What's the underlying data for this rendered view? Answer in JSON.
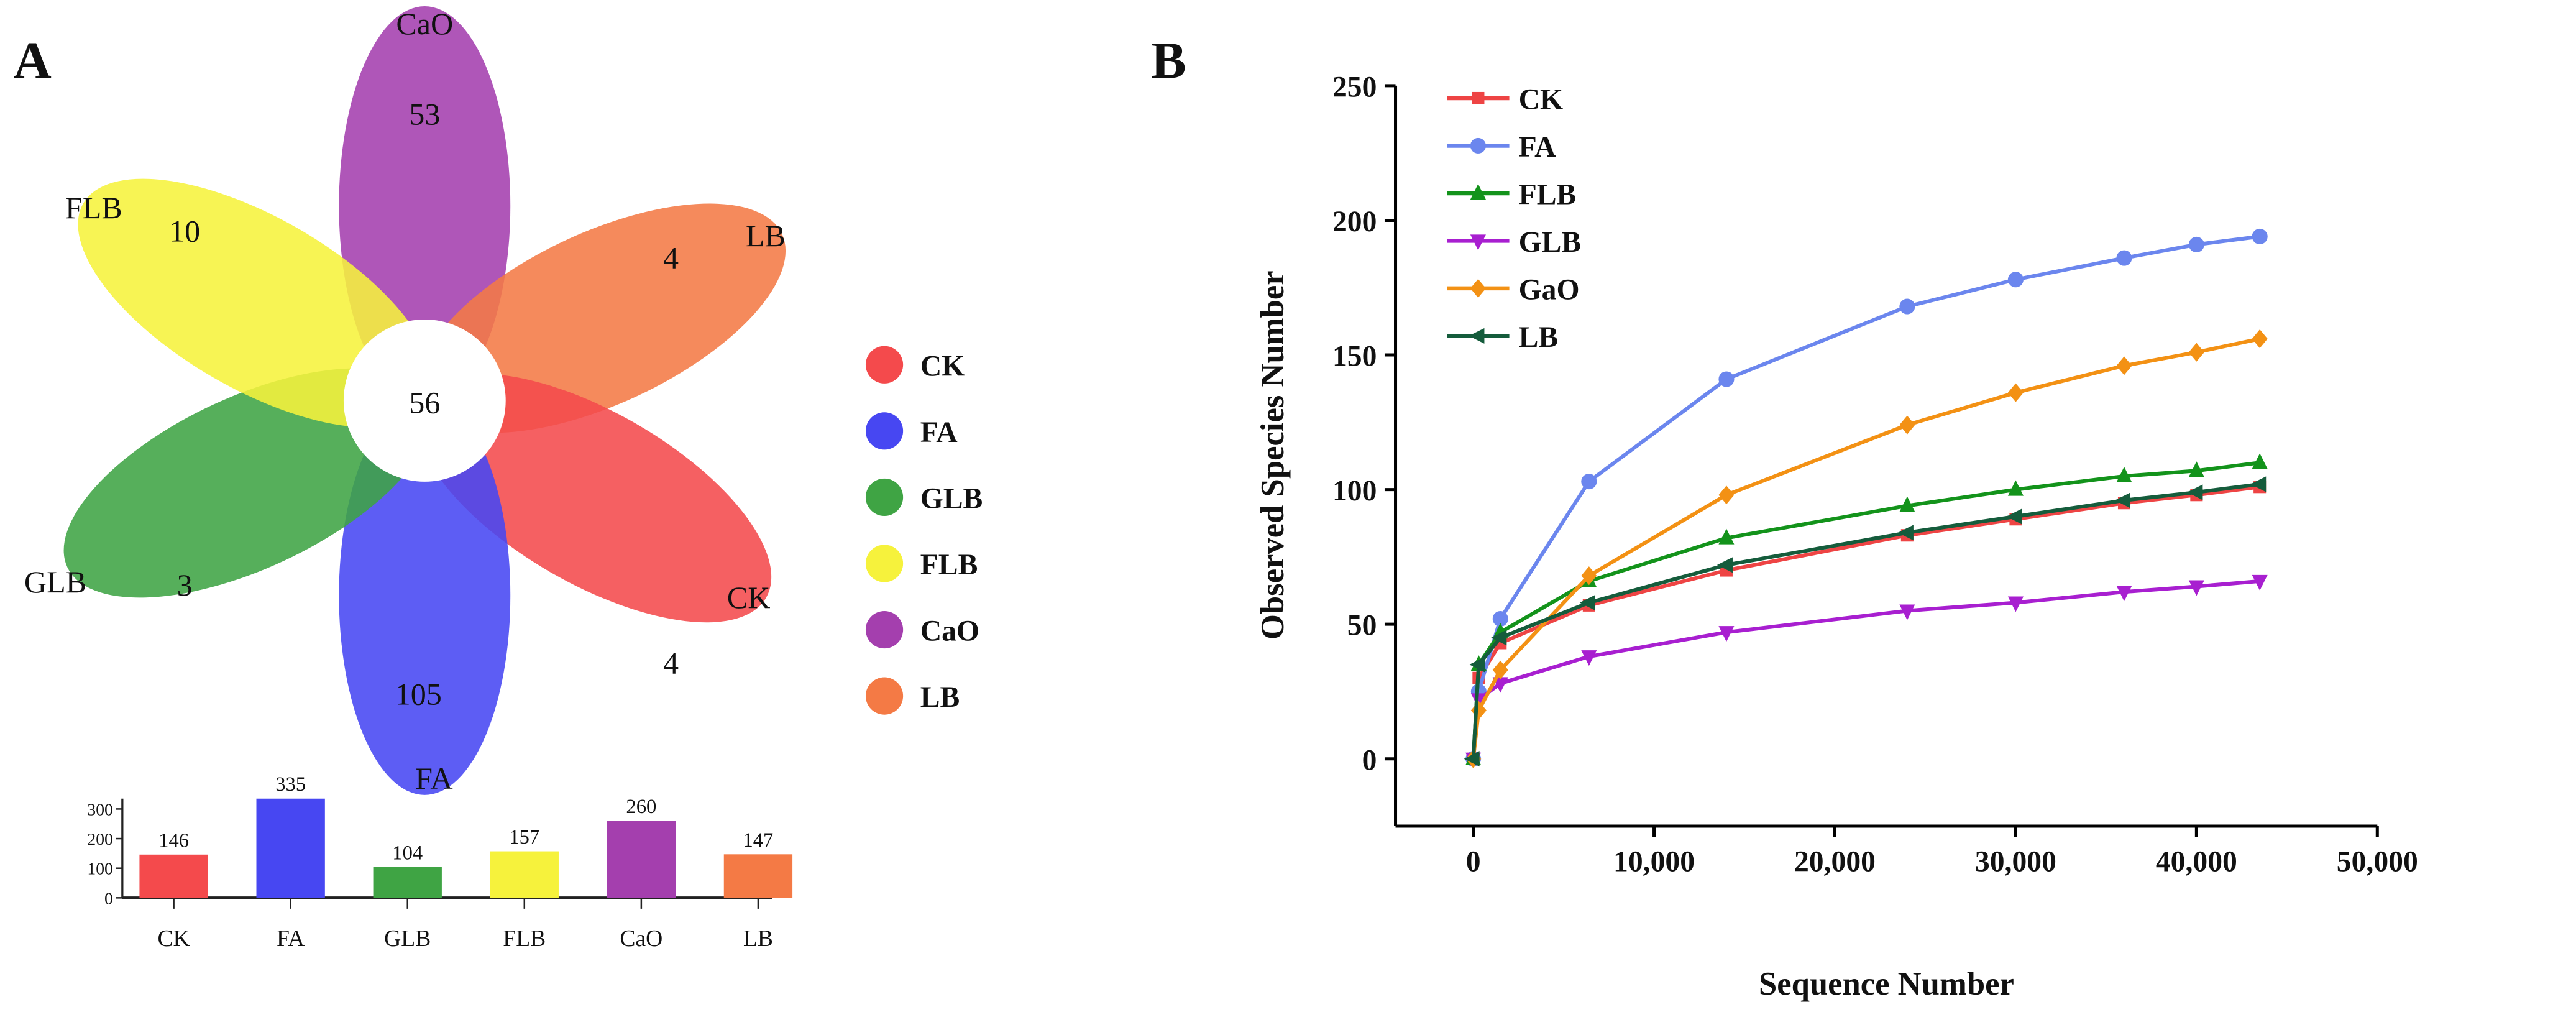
{
  "chart_data": [
    {
      "type": "venn",
      "panel_label": "A",
      "sets": [
        {
          "name": "CaO",
          "unique": 53,
          "color": "#a43fae"
        },
        {
          "name": "LB",
          "unique": 4,
          "color": "#f47a45"
        },
        {
          "name": "CK",
          "unique": 4,
          "color": "#f44a4c"
        },
        {
          "name": "FA",
          "unique": 105,
          "color": "#4747f2"
        },
        {
          "name": "GLB",
          "unique": 3,
          "color": "#3fa444"
        },
        {
          "name": "FLB",
          "unique": 10,
          "color": "#f6f23c"
        }
      ],
      "core": 56,
      "legend": [
        {
          "label": "CK",
          "color": "#f44a4c"
        },
        {
          "label": "FA",
          "color": "#4747f2"
        },
        {
          "label": "GLB",
          "color": "#3fa444"
        },
        {
          "label": "FLB",
          "color": "#f6f23c"
        },
        {
          "label": "CaO",
          "color": "#a43fae"
        },
        {
          "label": "LB",
          "color": "#f47a45"
        }
      ]
    },
    {
      "type": "bar",
      "categories": [
        "CK",
        "FA",
        "GLB",
        "FLB",
        "CaO",
        "LB"
      ],
      "values": [
        146,
        335,
        104,
        157,
        260,
        147
      ],
      "colors": [
        "#f44a4c",
        "#4747f2",
        "#3fa444",
        "#f6f23c",
        "#a43fae",
        "#f47a45"
      ],
      "yticks": [
        0,
        100,
        200,
        300
      ],
      "ylim": [
        0,
        335
      ]
    },
    {
      "type": "line",
      "panel_label": "B",
      "title": "",
      "xlabel": "Sequence Number",
      "ylabel": "Observed Species Number",
      "xlim": [
        -4300,
        50000
      ],
      "ylim": [
        -25,
        250
      ],
      "xticks": [
        0,
        10000,
        20000,
        30000,
        40000,
        50000
      ],
      "xtick_labels": [
        "0",
        "10,000",
        "20,000",
        "30,000",
        "40,000",
        "50,000"
      ],
      "yticks": [
        0,
        50,
        100,
        150,
        200,
        250
      ],
      "legend_position": "top-left",
      "x": [
        0,
        300,
        1500,
        6400,
        14000,
        24000,
        30000,
        36000,
        40000,
        43500
      ],
      "series": [
        {
          "name": "CK",
          "color": "#ee4444",
          "marker": "square",
          "values": [
            0,
            30,
            43,
            57,
            70,
            83,
            89,
            95,
            98,
            101
          ]
        },
        {
          "name": "FA",
          "color": "#6b86ee",
          "marker": "circle",
          "values": [
            0,
            25,
            52,
            103,
            141,
            168,
            178,
            186,
            191,
            194
          ]
        },
        {
          "name": "FLB",
          "color": "#13931b",
          "marker": "triangle-up",
          "values": [
            0,
            35,
            47,
            66,
            82,
            94,
            100,
            105,
            107,
            110
          ]
        },
        {
          "name": "GLB",
          "color": "#a81fd0",
          "marker": "triangle-down",
          "values": [
            0,
            22,
            28,
            38,
            47,
            55,
            58,
            62,
            64,
            66
          ]
        },
        {
          "name": "GaO",
          "color": "#f39114",
          "marker": "diamond",
          "values": [
            0,
            18,
            33,
            68,
            98,
            124,
            136,
            146,
            151,
            156
          ]
        },
        {
          "name": "LB",
          "color": "#155c3c",
          "marker": "triangle-left",
          "values": [
            0,
            35,
            45,
            58,
            72,
            84,
            90,
            96,
            99,
            102
          ]
        }
      ]
    }
  ]
}
